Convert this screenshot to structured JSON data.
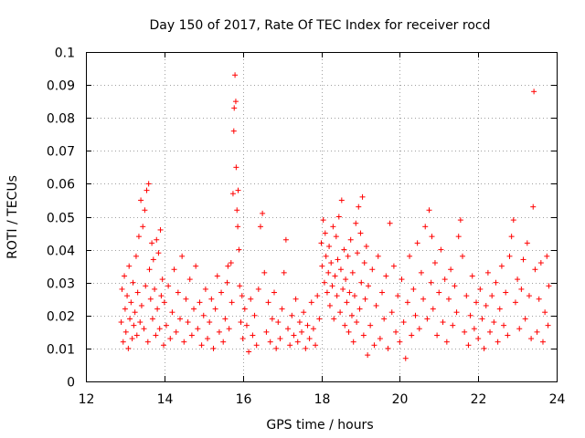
{
  "chart_data": {
    "type": "scatter",
    "title": "Day 150 of 2017, Rate Of TEC Index for receiver rocd",
    "xlabel": "GPS time / hours",
    "ylabel": "ROTI / TECUs",
    "xlim": [
      12,
      24
    ],
    "ylim": [
      0,
      0.1
    ],
    "xticks": [
      12,
      14,
      16,
      18,
      20,
      22,
      24
    ],
    "xtick_labels": [
      "12",
      "14",
      "16",
      "18",
      "20",
      "22",
      "24"
    ],
    "yticks": [
      0,
      0.01,
      0.02,
      0.03,
      0.04,
      0.05,
      0.06,
      0.07,
      0.08,
      0.09,
      0.1
    ],
    "ytick_labels": [
      "0",
      "0.01",
      "0.02",
      "0.03",
      "0.04",
      "0.05",
      "0.06",
      "0.07",
      "0.08",
      "0.09",
      "0.1"
    ],
    "grid": true,
    "marker": "plus",
    "color": "#ff0000",
    "series": [
      {
        "points": [
          [
            12.9,
            0.018
          ],
          [
            12.92,
            0.028
          ],
          [
            12.95,
            0.012
          ],
          [
            12.98,
            0.032
          ],
          [
            13.0,
            0.022
          ],
          [
            13.02,
            0.015
          ],
          [
            13.05,
            0.026
          ],
          [
            13.08,
            0.01
          ],
          [
            13.1,
            0.035
          ],
          [
            13.12,
            0.019
          ],
          [
            13.15,
            0.024
          ],
          [
            13.18,
            0.013
          ],
          [
            13.2,
            0.03
          ],
          [
            13.22,
            0.017
          ],
          [
            13.25,
            0.021
          ],
          [
            13.28,
            0.038
          ],
          [
            13.3,
            0.014
          ],
          [
            13.32,
            0.027
          ],
          [
            13.35,
            0.044
          ],
          [
            13.38,
            0.018
          ],
          [
            13.4,
            0.055
          ],
          [
            13.42,
            0.023
          ],
          [
            13.45,
            0.047
          ],
          [
            13.48,
            0.016
          ],
          [
            13.5,
            0.052
          ],
          [
            13.52,
            0.029
          ],
          [
            13.55,
            0.058
          ],
          [
            13.58,
            0.012
          ],
          [
            13.6,
            0.06
          ],
          [
            13.62,
            0.034
          ],
          [
            13.65,
            0.025
          ],
          [
            13.68,
            0.042
          ],
          [
            13.7,
            0.019
          ],
          [
            13.72,
            0.037
          ],
          [
            13.75,
            0.028
          ],
          [
            13.78,
            0.014
          ],
          [
            13.8,
            0.043
          ],
          [
            13.82,
            0.022
          ],
          [
            13.85,
            0.039
          ],
          [
            13.88,
            0.016
          ],
          [
            13.9,
            0.046
          ],
          [
            13.92,
            0.026
          ],
          [
            13.95,
            0.031
          ],
          [
            13.98,
            0.011
          ],
          [
            14.0,
            0.024
          ],
          [
            14.05,
            0.017
          ],
          [
            14.1,
            0.029
          ],
          [
            14.15,
            0.013
          ],
          [
            14.2,
            0.021
          ],
          [
            14.25,
            0.034
          ],
          [
            14.3,
            0.015
          ],
          [
            14.35,
            0.027
          ],
          [
            14.4,
            0.019
          ],
          [
            14.45,
            0.038
          ],
          [
            14.5,
            0.012
          ],
          [
            14.55,
            0.025
          ],
          [
            14.6,
            0.018
          ],
          [
            14.65,
            0.031
          ],
          [
            14.7,
            0.014
          ],
          [
            14.75,
            0.022
          ],
          [
            14.8,
            0.035
          ],
          [
            14.85,
            0.016
          ],
          [
            14.9,
            0.024
          ],
          [
            14.95,
            0.011
          ],
          [
            15.0,
            0.02
          ],
          [
            15.05,
            0.028
          ],
          [
            15.1,
            0.013
          ],
          [
            15.15,
            0.018
          ],
          [
            15.2,
            0.025
          ],
          [
            15.25,
            0.01
          ],
          [
            15.3,
            0.022
          ],
          [
            15.35,
            0.032
          ],
          [
            15.4,
            0.015
          ],
          [
            15.45,
            0.027
          ],
          [
            15.5,
            0.012
          ],
          [
            15.55,
            0.019
          ],
          [
            15.6,
            0.03
          ],
          [
            15.62,
            0.035
          ],
          [
            15.65,
            0.016
          ],
          [
            15.7,
            0.036
          ],
          [
            15.72,
            0.024
          ],
          [
            15.75,
            0.057
          ],
          [
            15.77,
            0.076
          ],
          [
            15.78,
            0.083
          ],
          [
            15.8,
            0.093
          ],
          [
            15.82,
            0.085
          ],
          [
            15.83,
            0.065
          ],
          [
            15.85,
            0.052
          ],
          [
            15.87,
            0.047
          ],
          [
            15.88,
            0.058
          ],
          [
            15.9,
            0.04
          ],
          [
            15.92,
            0.029
          ],
          [
            15.95,
            0.018
          ],
          [
            15.98,
            0.026
          ],
          [
            16.0,
            0.013
          ],
          [
            16.05,
            0.022
          ],
          [
            16.1,
            0.017
          ],
          [
            16.15,
            0.009
          ],
          [
            16.2,
            0.025
          ],
          [
            16.25,
            0.014
          ],
          [
            16.3,
            0.02
          ],
          [
            16.35,
            0.011
          ],
          [
            16.4,
            0.028
          ],
          [
            16.45,
            0.047
          ],
          [
            16.5,
            0.051
          ],
          [
            16.55,
            0.033
          ],
          [
            16.6,
            0.015
          ],
          [
            16.65,
            0.024
          ],
          [
            16.7,
            0.012
          ],
          [
            16.75,
            0.019
          ],
          [
            16.8,
            0.027
          ],
          [
            16.85,
            0.01
          ],
          [
            16.9,
            0.018
          ],
          [
            16.95,
            0.013
          ],
          [
            17.0,
            0.022
          ],
          [
            17.05,
            0.033
          ],
          [
            17.1,
            0.043
          ],
          [
            17.15,
            0.016
          ],
          [
            17.2,
            0.011
          ],
          [
            17.25,
            0.02
          ],
          [
            17.3,
            0.014
          ],
          [
            17.35,
            0.025
          ],
          [
            17.4,
            0.012
          ],
          [
            17.45,
            0.018
          ],
          [
            17.5,
            0.015
          ],
          [
            17.55,
            0.021
          ],
          [
            17.6,
            0.01
          ],
          [
            17.65,
            0.017
          ],
          [
            17.7,
            0.013
          ],
          [
            17.75,
            0.024
          ],
          [
            17.8,
            0.016
          ],
          [
            17.85,
            0.011
          ],
          [
            17.9,
            0.026
          ],
          [
            17.95,
            0.019
          ],
          [
            18.0,
            0.042
          ],
          [
            18.02,
            0.035
          ],
          [
            18.05,
            0.049
          ],
          [
            18.08,
            0.03
          ],
          [
            18.1,
            0.045
          ],
          [
            18.12,
            0.038
          ],
          [
            18.15,
            0.027
          ],
          [
            18.18,
            0.033
          ],
          [
            18.2,
            0.041
          ],
          [
            18.22,
            0.023
          ],
          [
            18.25,
            0.036
          ],
          [
            18.28,
            0.029
          ],
          [
            18.3,
            0.047
          ],
          [
            18.32,
            0.019
          ],
          [
            18.35,
            0.032
          ],
          [
            18.38,
            0.044
          ],
          [
            18.4,
            0.026
          ],
          [
            18.42,
            0.037
          ],
          [
            18.45,
            0.05
          ],
          [
            18.48,
            0.021
          ],
          [
            18.5,
            0.034
          ],
          [
            18.52,
            0.055
          ],
          [
            18.55,
            0.028
          ],
          [
            18.58,
            0.04
          ],
          [
            18.6,
            0.017
          ],
          [
            18.62,
            0.031
          ],
          [
            18.65,
            0.024
          ],
          [
            18.68,
            0.038
          ],
          [
            18.7,
            0.015
          ],
          [
            18.72,
            0.027
          ],
          [
            18.75,
            0.043
          ],
          [
            18.78,
            0.02
          ],
          [
            18.8,
            0.033
          ],
          [
            18.82,
            0.012
          ],
          [
            18.85,
            0.026
          ],
          [
            18.88,
            0.048
          ],
          [
            18.9,
            0.018
          ],
          [
            18.92,
            0.039
          ],
          [
            18.95,
            0.053
          ],
          [
            18.98,
            0.022
          ],
          [
            19.0,
            0.045
          ],
          [
            19.02,
            0.03
          ],
          [
            19.05,
            0.056
          ],
          [
            19.08,
            0.014
          ],
          [
            19.1,
            0.036
          ],
          [
            19.12,
            0.025
          ],
          [
            19.15,
            0.041
          ],
          [
            19.18,
            0.008
          ],
          [
            19.2,
            0.029
          ],
          [
            19.25,
            0.017
          ],
          [
            19.3,
            0.034
          ],
          [
            19.35,
            0.011
          ],
          [
            19.4,
            0.023
          ],
          [
            19.45,
            0.038
          ],
          [
            19.5,
            0.013
          ],
          [
            19.55,
            0.027
          ],
          [
            19.6,
            0.019
          ],
          [
            19.65,
            0.032
          ],
          [
            19.7,
            0.01
          ],
          [
            19.75,
            0.048
          ],
          [
            19.8,
            0.021
          ],
          [
            19.85,
            0.035
          ],
          [
            19.9,
            0.015
          ],
          [
            19.95,
            0.026
          ],
          [
            20.0,
            0.012
          ],
          [
            20.05,
            0.031
          ],
          [
            20.1,
            0.018
          ],
          [
            20.15,
            0.007
          ],
          [
            20.2,
            0.024
          ],
          [
            20.25,
            0.038
          ],
          [
            20.3,
            0.014
          ],
          [
            20.35,
            0.028
          ],
          [
            20.4,
            0.02
          ],
          [
            20.45,
            0.042
          ],
          [
            20.5,
            0.016
          ],
          [
            20.55,
            0.033
          ],
          [
            20.6,
            0.025
          ],
          [
            20.65,
            0.047
          ],
          [
            20.7,
            0.019
          ],
          [
            20.75,
            0.052
          ],
          [
            20.8,
            0.03
          ],
          [
            20.82,
            0.044
          ],
          [
            20.85,
            0.022
          ],
          [
            20.9,
            0.036
          ],
          [
            20.95,
            0.014
          ],
          [
            21.0,
            0.027
          ],
          [
            21.05,
            0.04
          ],
          [
            21.1,
            0.018
          ],
          [
            21.15,
            0.031
          ],
          [
            21.2,
            0.012
          ],
          [
            21.25,
            0.025
          ],
          [
            21.3,
            0.034
          ],
          [
            21.35,
            0.017
          ],
          [
            21.4,
            0.029
          ],
          [
            21.45,
            0.021
          ],
          [
            21.5,
            0.044
          ],
          [
            21.55,
            0.049
          ],
          [
            21.6,
            0.038
          ],
          [
            21.65,
            0.015
          ],
          [
            21.7,
            0.026
          ],
          [
            21.75,
            0.011
          ],
          [
            21.8,
            0.02
          ],
          [
            21.85,
            0.032
          ],
          [
            21.9,
            0.016
          ],
          [
            21.95,
            0.024
          ],
          [
            22.0,
            0.013
          ],
          [
            22.05,
            0.028
          ],
          [
            22.1,
            0.019
          ],
          [
            22.15,
            0.01
          ],
          [
            22.2,
            0.023
          ],
          [
            22.25,
            0.033
          ],
          [
            22.3,
            0.015
          ],
          [
            22.35,
            0.026
          ],
          [
            22.4,
            0.018
          ],
          [
            22.45,
            0.03
          ],
          [
            22.5,
            0.012
          ],
          [
            22.55,
            0.022
          ],
          [
            22.6,
            0.035
          ],
          [
            22.65,
            0.017
          ],
          [
            22.7,
            0.027
          ],
          [
            22.75,
            0.014
          ],
          [
            22.8,
            0.038
          ],
          [
            22.85,
            0.044
          ],
          [
            22.9,
            0.049
          ],
          [
            22.95,
            0.024
          ],
          [
            23.0,
            0.031
          ],
          [
            23.05,
            0.016
          ],
          [
            23.1,
            0.028
          ],
          [
            23.15,
            0.037
          ],
          [
            23.2,
            0.019
          ],
          [
            23.25,
            0.042
          ],
          [
            23.3,
            0.026
          ],
          [
            23.35,
            0.013
          ],
          [
            23.4,
            0.053
          ],
          [
            23.42,
            0.088
          ],
          [
            23.45,
            0.034
          ],
          [
            23.5,
            0.015
          ],
          [
            23.55,
            0.025
          ],
          [
            23.6,
            0.036
          ],
          [
            23.65,
            0.012
          ],
          [
            23.7,
            0.021
          ],
          [
            23.75,
            0.038
          ],
          [
            23.78,
            0.017
          ],
          [
            23.8,
            0.029
          ]
        ]
      }
    ]
  }
}
